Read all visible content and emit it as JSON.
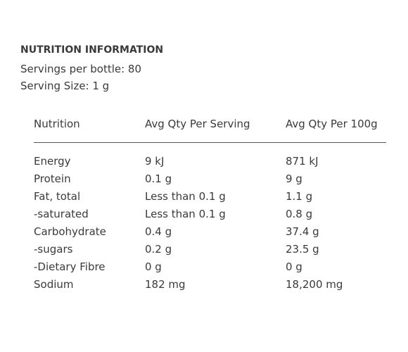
{
  "panel": {
    "title": "NUTRITION INFORMATION",
    "servings_per_bottle": "Servings per bottle: 80",
    "serving_size": "Serving Size: 1 g"
  },
  "table": {
    "headers": [
      "Nutrition",
      "Avg Qty Per Serving",
      "Avg Qty Per 100g"
    ],
    "rows": [
      [
        "Energy",
        "9 kJ",
        "871 kJ"
      ],
      [
        "Protein",
        "0.1 g",
        "9 g"
      ],
      [
        "Fat, total",
        "Less than 0.1 g",
        "1.1 g"
      ],
      [
        "-saturated",
        "Less than 0.1 g",
        "0.8 g"
      ],
      [
        "Carbohydrate",
        "0.4 g",
        "37.4 g"
      ],
      [
        "-sugars",
        "0.2 g",
        "23.5 g"
      ],
      [
        "-Dietary Fibre",
        "0 g",
        "0 g"
      ],
      [
        "Sodium",
        "182 mg",
        "18,200 mg"
      ]
    ]
  }
}
